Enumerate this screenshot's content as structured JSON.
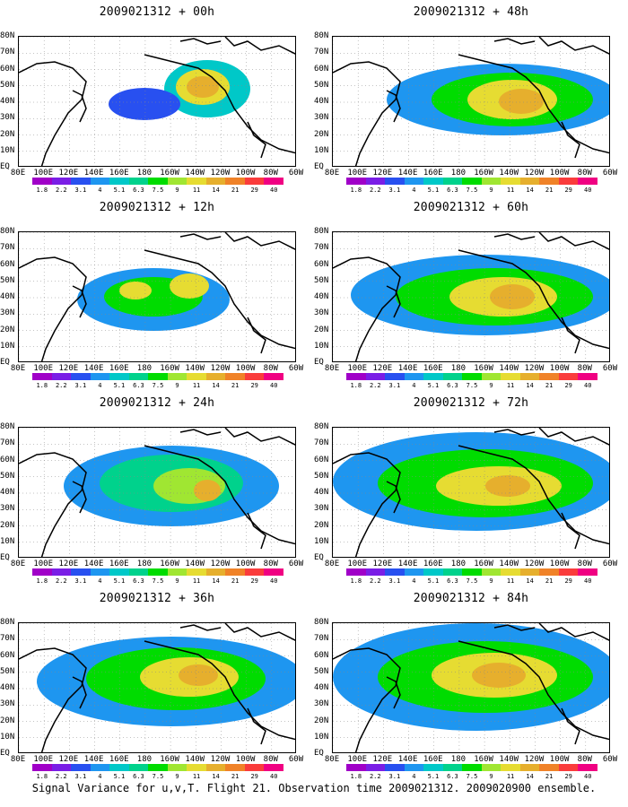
{
  "panels": [
    {
      "title": "2009021312 + 00h"
    },
    {
      "title": "2009021312 + 48h"
    },
    {
      "title": "2009021312 + 12h"
    },
    {
      "title": "2009021312 + 60h"
    },
    {
      "title": "2009021312 + 24h"
    },
    {
      "title": "2009021312 + 72h"
    },
    {
      "title": "2009021312 + 36h"
    },
    {
      "title": "2009021312 + 84h"
    }
  ],
  "lat_labels": [
    "80N",
    "70N",
    "60N",
    "50N",
    "40N",
    "30N",
    "20N",
    "10N",
    "EQ"
  ],
  "lon_labels": [
    "80E",
    "100E",
    "120E",
    "140E",
    "160E",
    "180",
    "160W",
    "140W",
    "120W",
    "100W",
    "80W",
    "60W"
  ],
  "colorbar": {
    "labels": [
      "1.8",
      "2.2",
      "3.1",
      "4",
      "5.1",
      "6.3",
      "7.5",
      "9",
      "11",
      "14",
      "21",
      "29",
      "40"
    ],
    "colors": [
      "#a000c8",
      "#7a1ee6",
      "#2850f0",
      "#1e96f0",
      "#00c8c8",
      "#00d28c",
      "#00dc00",
      "#a0e632",
      "#e6dc32",
      "#e6af2d",
      "#f08228",
      "#fa3c3c",
      "#f00082"
    ]
  },
  "caption": "Signal Variance for u,v,T. Flight 21. Observation time 2009021312. 2009020900 ensemble."
}
